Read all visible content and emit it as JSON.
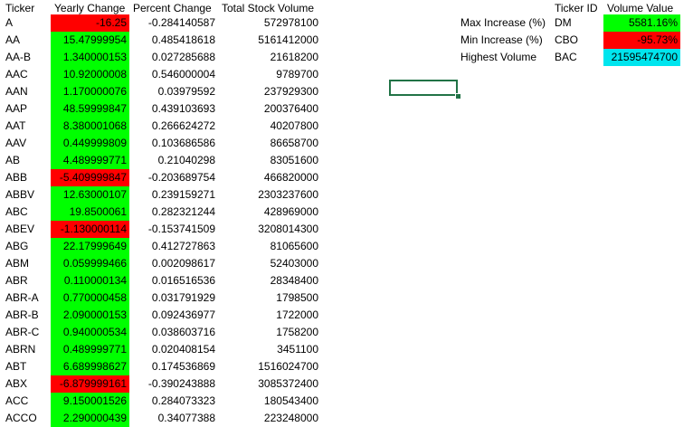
{
  "colors": {
    "positive": "#00ff00",
    "negative": "#ff0000",
    "highlight": "#00e5ee",
    "selection": "#217346"
  },
  "table": {
    "headers": {
      "ticker": "Ticker",
      "yearly_change": "Yearly Change",
      "percent_change": "Percent Change",
      "total_volume": "Total Stock Volume"
    },
    "rows": [
      {
        "ticker": "A",
        "yearly": "-16.25",
        "pct": "-0.284140587",
        "vol": "572978100",
        "sign": "negative"
      },
      {
        "ticker": "AA",
        "yearly": "15.47999954",
        "pct": "0.485418618",
        "vol": "5161412000",
        "sign": "positive"
      },
      {
        "ticker": "AA-B",
        "yearly": "1.340000153",
        "pct": "0.027285688",
        "vol": "21618200",
        "sign": "positive"
      },
      {
        "ticker": "AAC",
        "yearly": "10.92000008",
        "pct": "0.546000004",
        "vol": "9789700",
        "sign": "positive"
      },
      {
        "ticker": "AAN",
        "yearly": "1.170000076",
        "pct": "0.03979592",
        "vol": "237929300",
        "sign": "positive"
      },
      {
        "ticker": "AAP",
        "yearly": "48.59999847",
        "pct": "0.439103693",
        "vol": "200376400",
        "sign": "positive"
      },
      {
        "ticker": "AAT",
        "yearly": "8.380001068",
        "pct": "0.266624272",
        "vol": "40207800",
        "sign": "positive"
      },
      {
        "ticker": "AAV",
        "yearly": "0.449999809",
        "pct": "0.103686586",
        "vol": "86658700",
        "sign": "positive"
      },
      {
        "ticker": "AB",
        "yearly": "4.489999771",
        "pct": "0.21040298",
        "vol": "83051600",
        "sign": "positive"
      },
      {
        "ticker": "ABB",
        "yearly": "-5.409999847",
        "pct": "-0.203689754",
        "vol": "466820000",
        "sign": "negative"
      },
      {
        "ticker": "ABBV",
        "yearly": "12.63000107",
        "pct": "0.239159271",
        "vol": "2303237600",
        "sign": "positive"
      },
      {
        "ticker": "ABC",
        "yearly": "19.8500061",
        "pct": "0.282321244",
        "vol": "428969000",
        "sign": "positive"
      },
      {
        "ticker": "ABEV",
        "yearly": "-1.130000114",
        "pct": "-0.153741509",
        "vol": "3208014300",
        "sign": "negative"
      },
      {
        "ticker": "ABG",
        "yearly": "22.17999649",
        "pct": "0.412727863",
        "vol": "81065600",
        "sign": "positive"
      },
      {
        "ticker": "ABM",
        "yearly": "0.059999466",
        "pct": "0.002098617",
        "vol": "52403000",
        "sign": "positive"
      },
      {
        "ticker": "ABR",
        "yearly": "0.110000134",
        "pct": "0.016516536",
        "vol": "28348400",
        "sign": "positive"
      },
      {
        "ticker": "ABR-A",
        "yearly": "0.770000458",
        "pct": "0.031791929",
        "vol": "1798500",
        "sign": "positive"
      },
      {
        "ticker": "ABR-B",
        "yearly": "2.090000153",
        "pct": "0.092436977",
        "vol": "1722000",
        "sign": "positive"
      },
      {
        "ticker": "ABR-C",
        "yearly": "0.940000534",
        "pct": "0.038603716",
        "vol": "1758200",
        "sign": "positive"
      },
      {
        "ticker": "ABRN",
        "yearly": "0.489999771",
        "pct": "0.020408154",
        "vol": "3451100",
        "sign": "positive"
      },
      {
        "ticker": "ABT",
        "yearly": "6.689998627",
        "pct": "0.174536869",
        "vol": "1516024700",
        "sign": "positive"
      },
      {
        "ticker": "ABX",
        "yearly": "-6.879999161",
        "pct": "-0.390243888",
        "vol": "3085372400",
        "sign": "negative"
      },
      {
        "ticker": "ACC",
        "yearly": "9.150001526",
        "pct": "0.284073323",
        "vol": "180543400",
        "sign": "positive"
      },
      {
        "ticker": "ACCO",
        "yearly": "2.290000439",
        "pct": "0.34077388",
        "vol": "223248000",
        "sign": "positive"
      }
    ]
  },
  "summary": {
    "headers": {
      "ticker_id": "Ticker ID",
      "volume_value": "Volume Value"
    },
    "rows": [
      {
        "label": "Max Increase (%)",
        "ticker": "DM",
        "value": "5581.16%",
        "fill": "positive"
      },
      {
        "label": "Min Increase (%)",
        "ticker": "CBO",
        "value": "-95.73%",
        "fill": "negative"
      },
      {
        "label": "Highest Volume",
        "ticker": "BAC",
        "value": "21595474700",
        "fill": "highlight"
      }
    ]
  }
}
